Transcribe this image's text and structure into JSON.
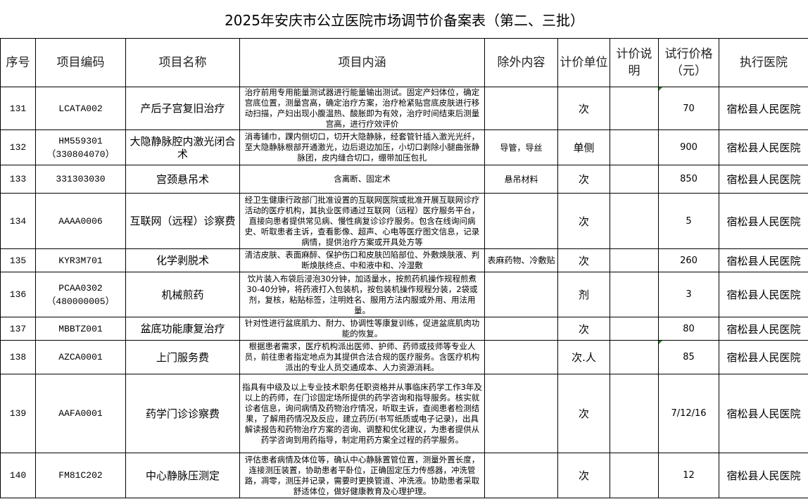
{
  "title": "2025年安庆市公立医院市场调节价备案表（第二、三批）",
  "headers": {
    "seq": "序号",
    "code": "项目编码",
    "name": "项目名称",
    "content": "项目内涵",
    "excluded": "除外内容",
    "unit": "计价单位",
    "note": "计价说明",
    "price": "试行价格（元）",
    "hospital": "执行医院"
  },
  "rows": [
    {
      "seq": "131",
      "code": "LCATA002",
      "code2": "",
      "name": "产后子宫复旧治疗",
      "content": "治疗前用专用能量测试器进行能量输出测试。固定产妇体位，确定宫底位置，测量宫高，确定治疗方案，治疗枪紧贴宫底皮肤进行移动扫描，产妇出现小腹温热、酸胀即为有效，治疗时间结束后测量宫高，进行疗效评价",
      "excluded": "",
      "unit": "次",
      "note": "",
      "price": "70",
      "hospital": "宿松县人民医院"
    },
    {
      "seq": "132",
      "code": "HM559301",
      "code2": "（330804070）",
      "name": "大隐静脉腔内激光闭合术",
      "content": "消毒铺巾，踝内侧切口，切开大隐静脉，经套管针插入激光光纤，至大隐静脉根部开通激光，边后退边加压，小切口剥除小腿曲张静脉团，皮内缝合切口，绷带加压包扎",
      "excluded": "导管，导丝",
      "unit": "单侧",
      "note": "",
      "price": "900",
      "hospital": "宿松县人民医院"
    },
    {
      "seq": "133",
      "code": "331303030",
      "code2": "",
      "name": "宫颈悬吊术",
      "content": "含离断、固定术",
      "excluded": "悬吊材料",
      "unit": "次",
      "note": "",
      "price": "850",
      "hospital": "宿松县人民医院"
    },
    {
      "seq": "134",
      "code": "AAAA0006",
      "code2": "",
      "name": "互联网（远程）诊察费",
      "content": "经卫生健康行政部门批准设置的互联网医院或批准开展互联网诊疗活动的医疗机构，其执业医师通过互联网（远程）医疗服务平台，直接向患者提供常见病、慢性病复诊诊疗服务。包含在线询问病史、听取患者主诉，查看影像、超声、心电等医疗图文信息，记录病情，提供治疗方案或开具处方等",
      "excluded": "",
      "unit": "次",
      "note": "",
      "price": "5",
      "hospital": "宿松县人民医院"
    },
    {
      "seq": "135",
      "code": "KYR3M701",
      "code2": "",
      "name": "化学剥脱术",
      "content": "清洁皮肤、表面麻醉、保护伤口和皮肤凹陷部位、外敷焕肤液、判断焕肤终点、中和液中和、冷湿敷",
      "excluded": "表麻药物、冷敷贴",
      "unit": "次",
      "note": "",
      "price": "260",
      "hospital": "宿松县人民医院"
    },
    {
      "seq": "136",
      "code": "PCAA0302",
      "code2": "（480000005）",
      "name": "机械煎药",
      "content": "饮片装入布袋后浸泡30分钟，加适量水，按煎药机操作规程煎煮30-40分钟，将药液打入包装机，按包装机操作规程分装，2袋或剂，复核，粘贴标签，注明姓名、服用方法内服或外用、用法用量。",
      "excluded": "",
      "unit": "剂",
      "note": "",
      "price": "3",
      "hospital": "宿松县人民医院"
    },
    {
      "seq": "137",
      "code": "MBBTZ001",
      "code2": "",
      "name": "盆底功能康复治疗",
      "content": "针对性进行盆底肌力、耐力、协调性等康复训练，促进盆底肌肉功能的恢复。",
      "excluded": "",
      "unit": "次",
      "note": "",
      "price": "80",
      "hospital": "宿松县人民医院"
    },
    {
      "seq": "138",
      "code": "AZCA0001",
      "code2": "",
      "name": "上门服务费",
      "content": "根据患者需求，医疗机构派出医师、护师、药师或技师等专业人员，前往患者指定地点为其提供合法合规的医疗服务。含医疗机构派出的专业人员交通成本、人力资源消耗。",
      "excluded": "",
      "unit": "次.人",
      "note": "",
      "price": "85",
      "hospital": "宿松县人民医院"
    },
    {
      "seq": "139",
      "code": "AAFA0001",
      "code2": "",
      "name": "药学门诊诊察费",
      "content": "指具有中级及以上专业技术职务任职资格并从事临床药学工作3年及以上的药师，在门诊固定场所提供的药学咨询和指导服务。核实就诊者信息，询问病情及药物治疗情况，听取主诉，查阅患者检测结果，了解用药情况及反应，建立药历(书写纸质或电子记录)，出具解读报告和药物治疗方案的咨询、调整和优化建议，为患者提供从药学咨询到用药指导，制定用药方案全过程的药学服务。",
      "excluded": "",
      "unit": "次",
      "note": "",
      "price": "7/12/16",
      "hospital": "宿松县人民医院"
    },
    {
      "seq": "140",
      "code": "FM81C202",
      "code2": "",
      "name": "中心静脉压测定",
      "content": "评估患者病情及体位等，确认中心静脉置管位置，测量外置长度，连接测压装置，协助患者平卧位，正确固定压力传感器，冲洗管路，凋零，测压并记录，需要时更换管道、冲洗液。协助患者采取舒适体位，做好健康教育及心理护理。",
      "excluded": "",
      "unit": "次",
      "note": "",
      "price": "12",
      "hospital": "宿松县人民医院"
    }
  ]
}
